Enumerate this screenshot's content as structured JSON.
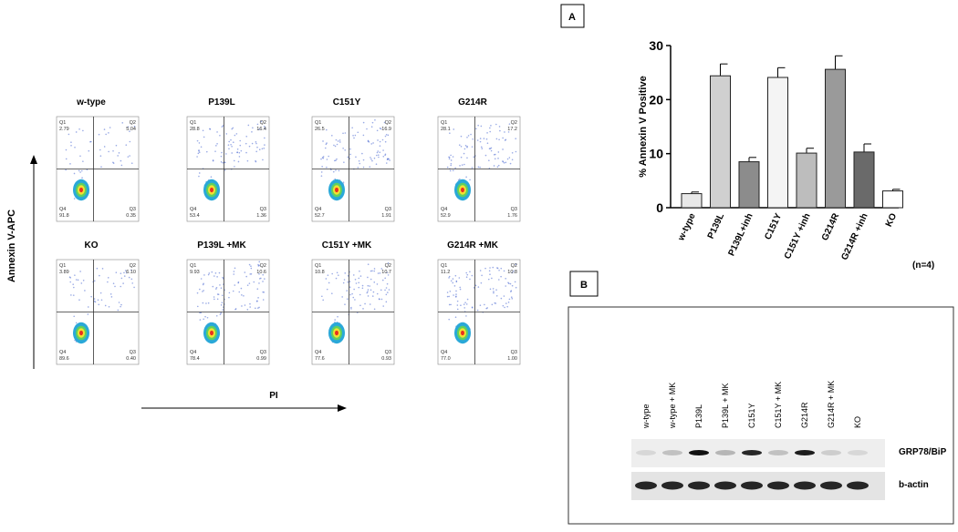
{
  "panel_a": {
    "label": "A",
    "flow": {
      "y_label": "Annexin V-APC",
      "x_label": "PI",
      "plots": [
        {
          "title": "w-type",
          "quadrants": [
            {
              "name": "Q1",
              "value": "2.79"
            },
            {
              "name": "Q2",
              "value": "5.04"
            },
            {
              "name": "Q3",
              "value": "0.35"
            },
            {
              "name": "Q4",
              "value": "91.8"
            }
          ]
        },
        {
          "title": "P139L",
          "quadrants": [
            {
              "name": "Q1",
              "value": "28.8"
            },
            {
              "name": "Q2",
              "value": "16.4"
            },
            {
              "name": "Q3",
              "value": "1.36"
            },
            {
              "name": "Q4",
              "value": "53.4"
            }
          ]
        },
        {
          "title": "C151Y",
          "quadrants": [
            {
              "name": "Q1",
              "value": "26.5"
            },
            {
              "name": "Q2",
              "value": "16.9"
            },
            {
              "name": "Q3",
              "value": "1.91"
            },
            {
              "name": "Q4",
              "value": "52.7"
            }
          ]
        },
        {
          "title": "G214R",
          "quadrants": [
            {
              "name": "Q1",
              "value": "28.1"
            },
            {
              "name": "Q2",
              "value": "17.2"
            },
            {
              "name": "Q3",
              "value": "1.76"
            },
            {
              "name": "Q4",
              "value": "52.9"
            }
          ]
        },
        {
          "title": "KO",
          "quadrants": [
            {
              "name": "Q1",
              "value": "3.89"
            },
            {
              "name": "Q2",
              "value": "6.10"
            },
            {
              "name": "Q3",
              "value": "0.40"
            },
            {
              "name": "Q4",
              "value": "89.6"
            }
          ]
        },
        {
          "title": "P139L +MK",
          "quadrants": [
            {
              "name": "Q1",
              "value": "9.93"
            },
            {
              "name": "Q2",
              "value": "10.6"
            },
            {
              "name": "Q3",
              "value": "0.99"
            },
            {
              "name": "Q4",
              "value": "78.4"
            }
          ]
        },
        {
          "title": "C151Y +MK",
          "quadrants": [
            {
              "name": "Q1",
              "value": "10.8"
            },
            {
              "name": "Q2",
              "value": "10.7"
            },
            {
              "name": "Q3",
              "value": "0.93"
            },
            {
              "name": "Q4",
              "value": "77.6"
            }
          ]
        },
        {
          "title": "G214R +MK",
          "quadrants": [
            {
              "name": "Q1",
              "value": "11.2"
            },
            {
              "name": "Q2",
              "value": "10.8"
            },
            {
              "name": "Q3",
              "value": "1.00"
            },
            {
              "name": "Q4",
              "value": "77.0"
            }
          ]
        }
      ]
    }
  },
  "chart_data": {
    "type": "bar",
    "ylabel": "% Annexin V Positive",
    "categories": [
      "w-type",
      "P139L",
      "P139L+inh",
      "C151Y",
      "C151Y +inh",
      "G214R",
      "G214R +inh",
      "KO"
    ],
    "values": [
      2.6,
      24.4,
      8.5,
      24.1,
      10.1,
      25.6,
      10.3,
      3.1
    ],
    "errors": [
      0.3,
      2.2,
      0.8,
      1.8,
      0.9,
      2.5,
      1.5,
      0.3
    ],
    "colors": [
      "#e8e8e8",
      "#d0d0d0",
      "#8c8c8c",
      "#f4f4f4",
      "#bdbdbd",
      "#9a9a9a",
      "#6a6a6a",
      "#ffffff"
    ],
    "ylim": [
      0,
      30
    ],
    "yticks": [
      0,
      10,
      20,
      30
    ],
    "note": "(n=4)"
  },
  "panel_b": {
    "label": "B",
    "lanes": [
      "w-type",
      "w-type + MK",
      "P139L",
      "P139L + MK",
      "C151Y",
      "C151Y + MK",
      "G214R",
      "G214R + MK",
      "KO"
    ],
    "rows": [
      "GRP78/BiP",
      "b-actin"
    ]
  }
}
